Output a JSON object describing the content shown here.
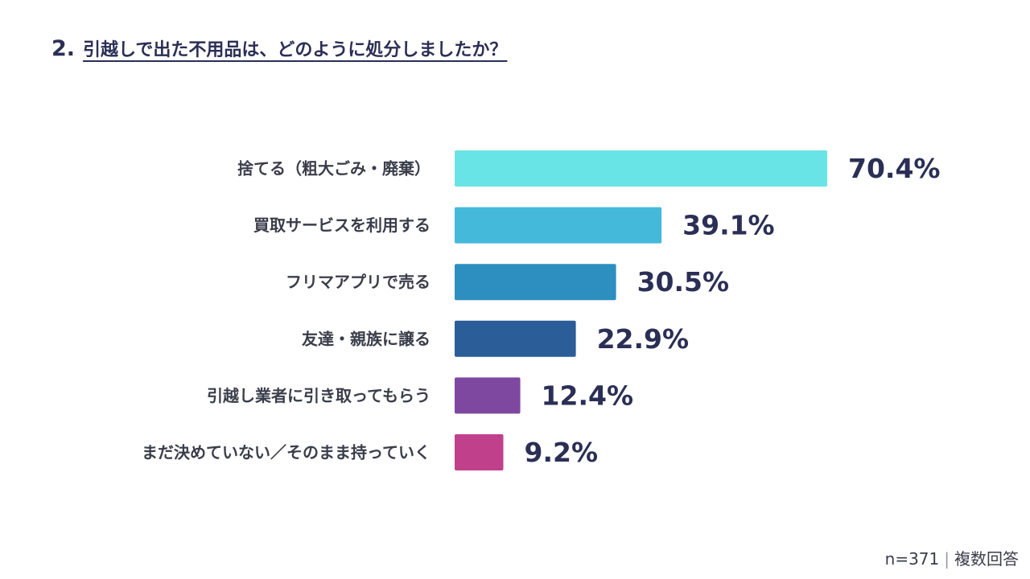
{
  "header": {
    "number": "2.",
    "question": "引越しで出た不用品は、どのように処分しましたか？"
  },
  "chart_data": {
    "type": "bar",
    "orientation": "horizontal",
    "title": "2. 引越しで出た不用品は、どのように処分しましたか？",
    "categories": [
      "捨てる（粗大ごみ・廃棄）",
      "買取サービスを利用する",
      "フリマアプリで売る",
      "友達・親族に譲る",
      "引越し業者に引き取ってもらう",
      "まだ決めていない／そのまま持っていく"
    ],
    "values": [
      70.4,
      39.1,
      30.5,
      22.9,
      12.4,
      9.2
    ],
    "value_labels": [
      "70.4%",
      "39.1%",
      "30.5%",
      "22.9%",
      "12.4%",
      "9.2%"
    ],
    "unit": "%",
    "xlim": [
      0,
      70.4
    ],
    "grid": false,
    "colors": [
      "#69e4e6",
      "#44b9da",
      "#2c8fbf",
      "#2b5d99",
      "#7f48a0",
      "#c0408c"
    ]
  },
  "footnote": {
    "sample": "n=371",
    "separator": "|",
    "note": "複数回答"
  }
}
